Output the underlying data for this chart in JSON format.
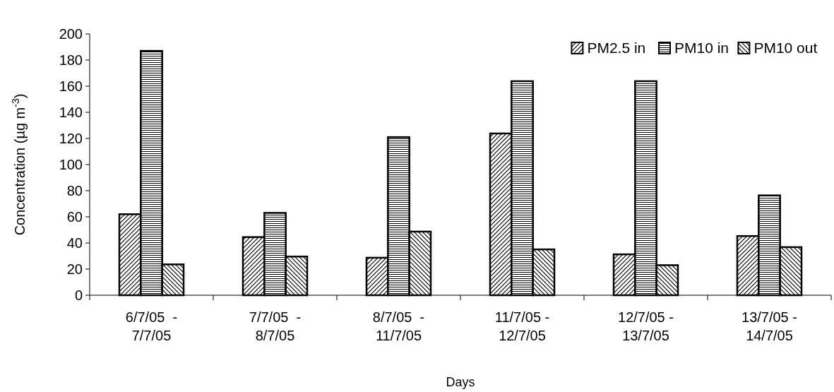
{
  "chart_data": {
    "type": "bar",
    "xlabel": "Days",
    "ylabel": "Concentration (µg m$^{-3}$)",
    "categories": [
      "6/7/05  -\n7/7/05",
      "7/7/05  -\n8/7/05",
      "8/7/05  -\n11/7/05",
      "11/7/05 -\n12/7/05",
      "12/7/05 -\n13/7/05",
      "13/7/05 -\n14/7/05"
    ],
    "series": [
      {
        "name": "PM2.5 in",
        "color": "#000000",
        "values": [
          62,
          44.5,
          28.7,
          123.8,
          31.3,
          45.3
        ]
      },
      {
        "name": "PM10 in",
        "color": "#000000",
        "values": [
          187,
          63,
          121,
          163.8,
          163.8,
          76.4
        ]
      },
      {
        "name": "PM10 out",
        "color": "#000000",
        "values": [
          23.6,
          29.6,
          48.7,
          35.1,
          23,
          36.8
        ]
      }
    ],
    "ylim": [
      0,
      200
    ],
    "yticks": [
      0,
      20,
      40,
      60,
      80,
      100,
      120,
      140,
      160,
      180,
      200
    ],
    "grid": false,
    "legend": "top right"
  }
}
